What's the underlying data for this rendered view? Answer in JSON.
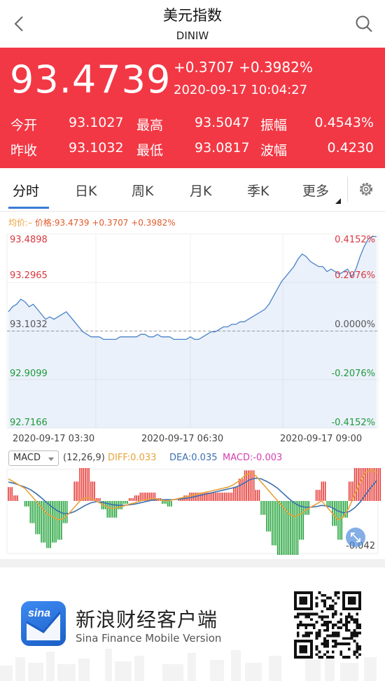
{
  "header": {
    "title": "美元指数",
    "subtitle": "DINIW"
  },
  "quote": {
    "price": "93.4739",
    "change": "+0.3707 +0.3982%",
    "datetime": "2020-09-17 10:04:27",
    "stats": [
      {
        "l1": "今开",
        "v1": "93.1027",
        "l2": "最高",
        "v2": "93.5047",
        "l3": "振幅",
        "v3": "0.4543%"
      },
      {
        "l1": "昨收",
        "v1": "93.1032",
        "l2": "最低",
        "v2": "93.0817",
        "l3": "波幅",
        "v3": "0.4230"
      }
    ]
  },
  "tabs": [
    "分时",
    "日K",
    "周K",
    "月K",
    "季K",
    "更多"
  ],
  "legend": {
    "avg": "均价:–",
    "price": "价格:93.4739 +0.3707 +0.3982%"
  },
  "chart_data": {
    "type": "line",
    "y_left_ticks": [
      "93.4898",
      "93.2965",
      "93.1032",
      "92.9099",
      "92.7166"
    ],
    "y_right_ticks": [
      "0.4152%",
      "0.2076%",
      "0.0000%",
      "-0.2076%",
      "-0.4152%"
    ],
    "x_ticks": [
      "2020-09-17 03:30",
      "2020-09-17 06:30",
      "2020-09-17 09:00"
    ],
    "ylim": [
      92.7166,
      93.4898
    ],
    "baseline": 93.1032,
    "series": [
      {
        "values": [
          93.18,
          93.2,
          93.21,
          93.23,
          93.22,
          93.2,
          93.21,
          93.19,
          93.17,
          93.15,
          93.16,
          93.15,
          93.16,
          93.17,
          93.18,
          93.16,
          93.14,
          93.12,
          93.1,
          93.09,
          93.08,
          93.08,
          93.08,
          93.07,
          93.07,
          93.07,
          93.07,
          93.08,
          93.08,
          93.08,
          93.08,
          93.08,
          93.09,
          93.09,
          93.08,
          93.08,
          93.09,
          93.08,
          93.08,
          93.08,
          93.07,
          93.07,
          93.07,
          93.07,
          93.08,
          93.07,
          93.07,
          93.08,
          93.09,
          93.1,
          93.1,
          93.11,
          93.12,
          93.12,
          93.13,
          93.13,
          93.14,
          93.14,
          93.15,
          93.16,
          93.17,
          93.18,
          93.19,
          93.21,
          93.24,
          93.27,
          93.3,
          93.32,
          93.34,
          93.36,
          93.39,
          93.41,
          93.4,
          93.38,
          93.37,
          93.36,
          93.36,
          93.34,
          93.35,
          93.34,
          93.33,
          93.34,
          93.35,
          93.32,
          93.35,
          93.4,
          93.44,
          93.47,
          93.48,
          93.48
        ]
      }
    ]
  },
  "macd": {
    "selector": "MACD",
    "params": "(12,26,9)",
    "diff": "DIFF:0.033",
    "dea": "DEA:0.035",
    "macd": "MACD:-0.003",
    "low_label": "-0.042",
    "colors": {
      "diff": "#e8a23a",
      "dea": "#3a6fb0",
      "up": "#e53935",
      "down": "#22a33a"
    },
    "diff_values": [
      0.035,
      0.03,
      0.025,
      0.02,
      0.01,
      0.0,
      -0.01,
      -0.02,
      -0.025,
      -0.03,
      -0.028,
      -0.02,
      -0.01,
      0.0,
      0.005,
      0.004,
      0.0,
      -0.005,
      -0.01,
      -0.012,
      -0.01,
      -0.008,
      -0.005,
      -0.003,
      0.0,
      0.002,
      0.004,
      0.003,
      0.001,
      0.0,
      0.002,
      0.004,
      0.006,
      0.008,
      0.01,
      0.012,
      0.014,
      0.016,
      0.018,
      0.02,
      0.022,
      0.026,
      0.032,
      0.04,
      0.045,
      0.04,
      0.03,
      0.02,
      0.01,
      0.0,
      -0.01,
      -0.02,
      -0.025,
      -0.022,
      -0.015,
      -0.01,
      -0.005,
      0.0,
      -0.01,
      -0.02,
      -0.03,
      -0.025,
      -0.01,
      0.01,
      0.03,
      0.045,
      0.05,
      0.045
    ],
    "dea_values": [
      0.03,
      0.028,
      0.025,
      0.022,
      0.018,
      0.012,
      0.005,
      -0.003,
      -0.01,
      -0.016,
      -0.02,
      -0.02,
      -0.017,
      -0.012,
      -0.007,
      -0.003,
      -0.001,
      -0.002,
      -0.004,
      -0.006,
      -0.007,
      -0.007,
      -0.006,
      -0.005,
      -0.003,
      -0.001,
      0.001,
      0.002,
      0.002,
      0.002,
      0.002,
      0.003,
      0.004,
      0.005,
      0.007,
      0.009,
      0.011,
      0.013,
      0.015,
      0.017,
      0.019,
      0.021,
      0.024,
      0.029,
      0.034,
      0.036,
      0.035,
      0.031,
      0.026,
      0.02,
      0.012,
      0.004,
      -0.003,
      -0.008,
      -0.01,
      -0.01,
      -0.009,
      -0.007,
      -0.008,
      -0.011,
      -0.016,
      -0.019,
      -0.017,
      -0.011,
      -0.002,
      0.01,
      0.022,
      0.032
    ]
  },
  "banner": {
    "cn": "新浪财经客户端",
    "en": "Sina Finance Mobile Version",
    "logo_text": "sina"
  }
}
